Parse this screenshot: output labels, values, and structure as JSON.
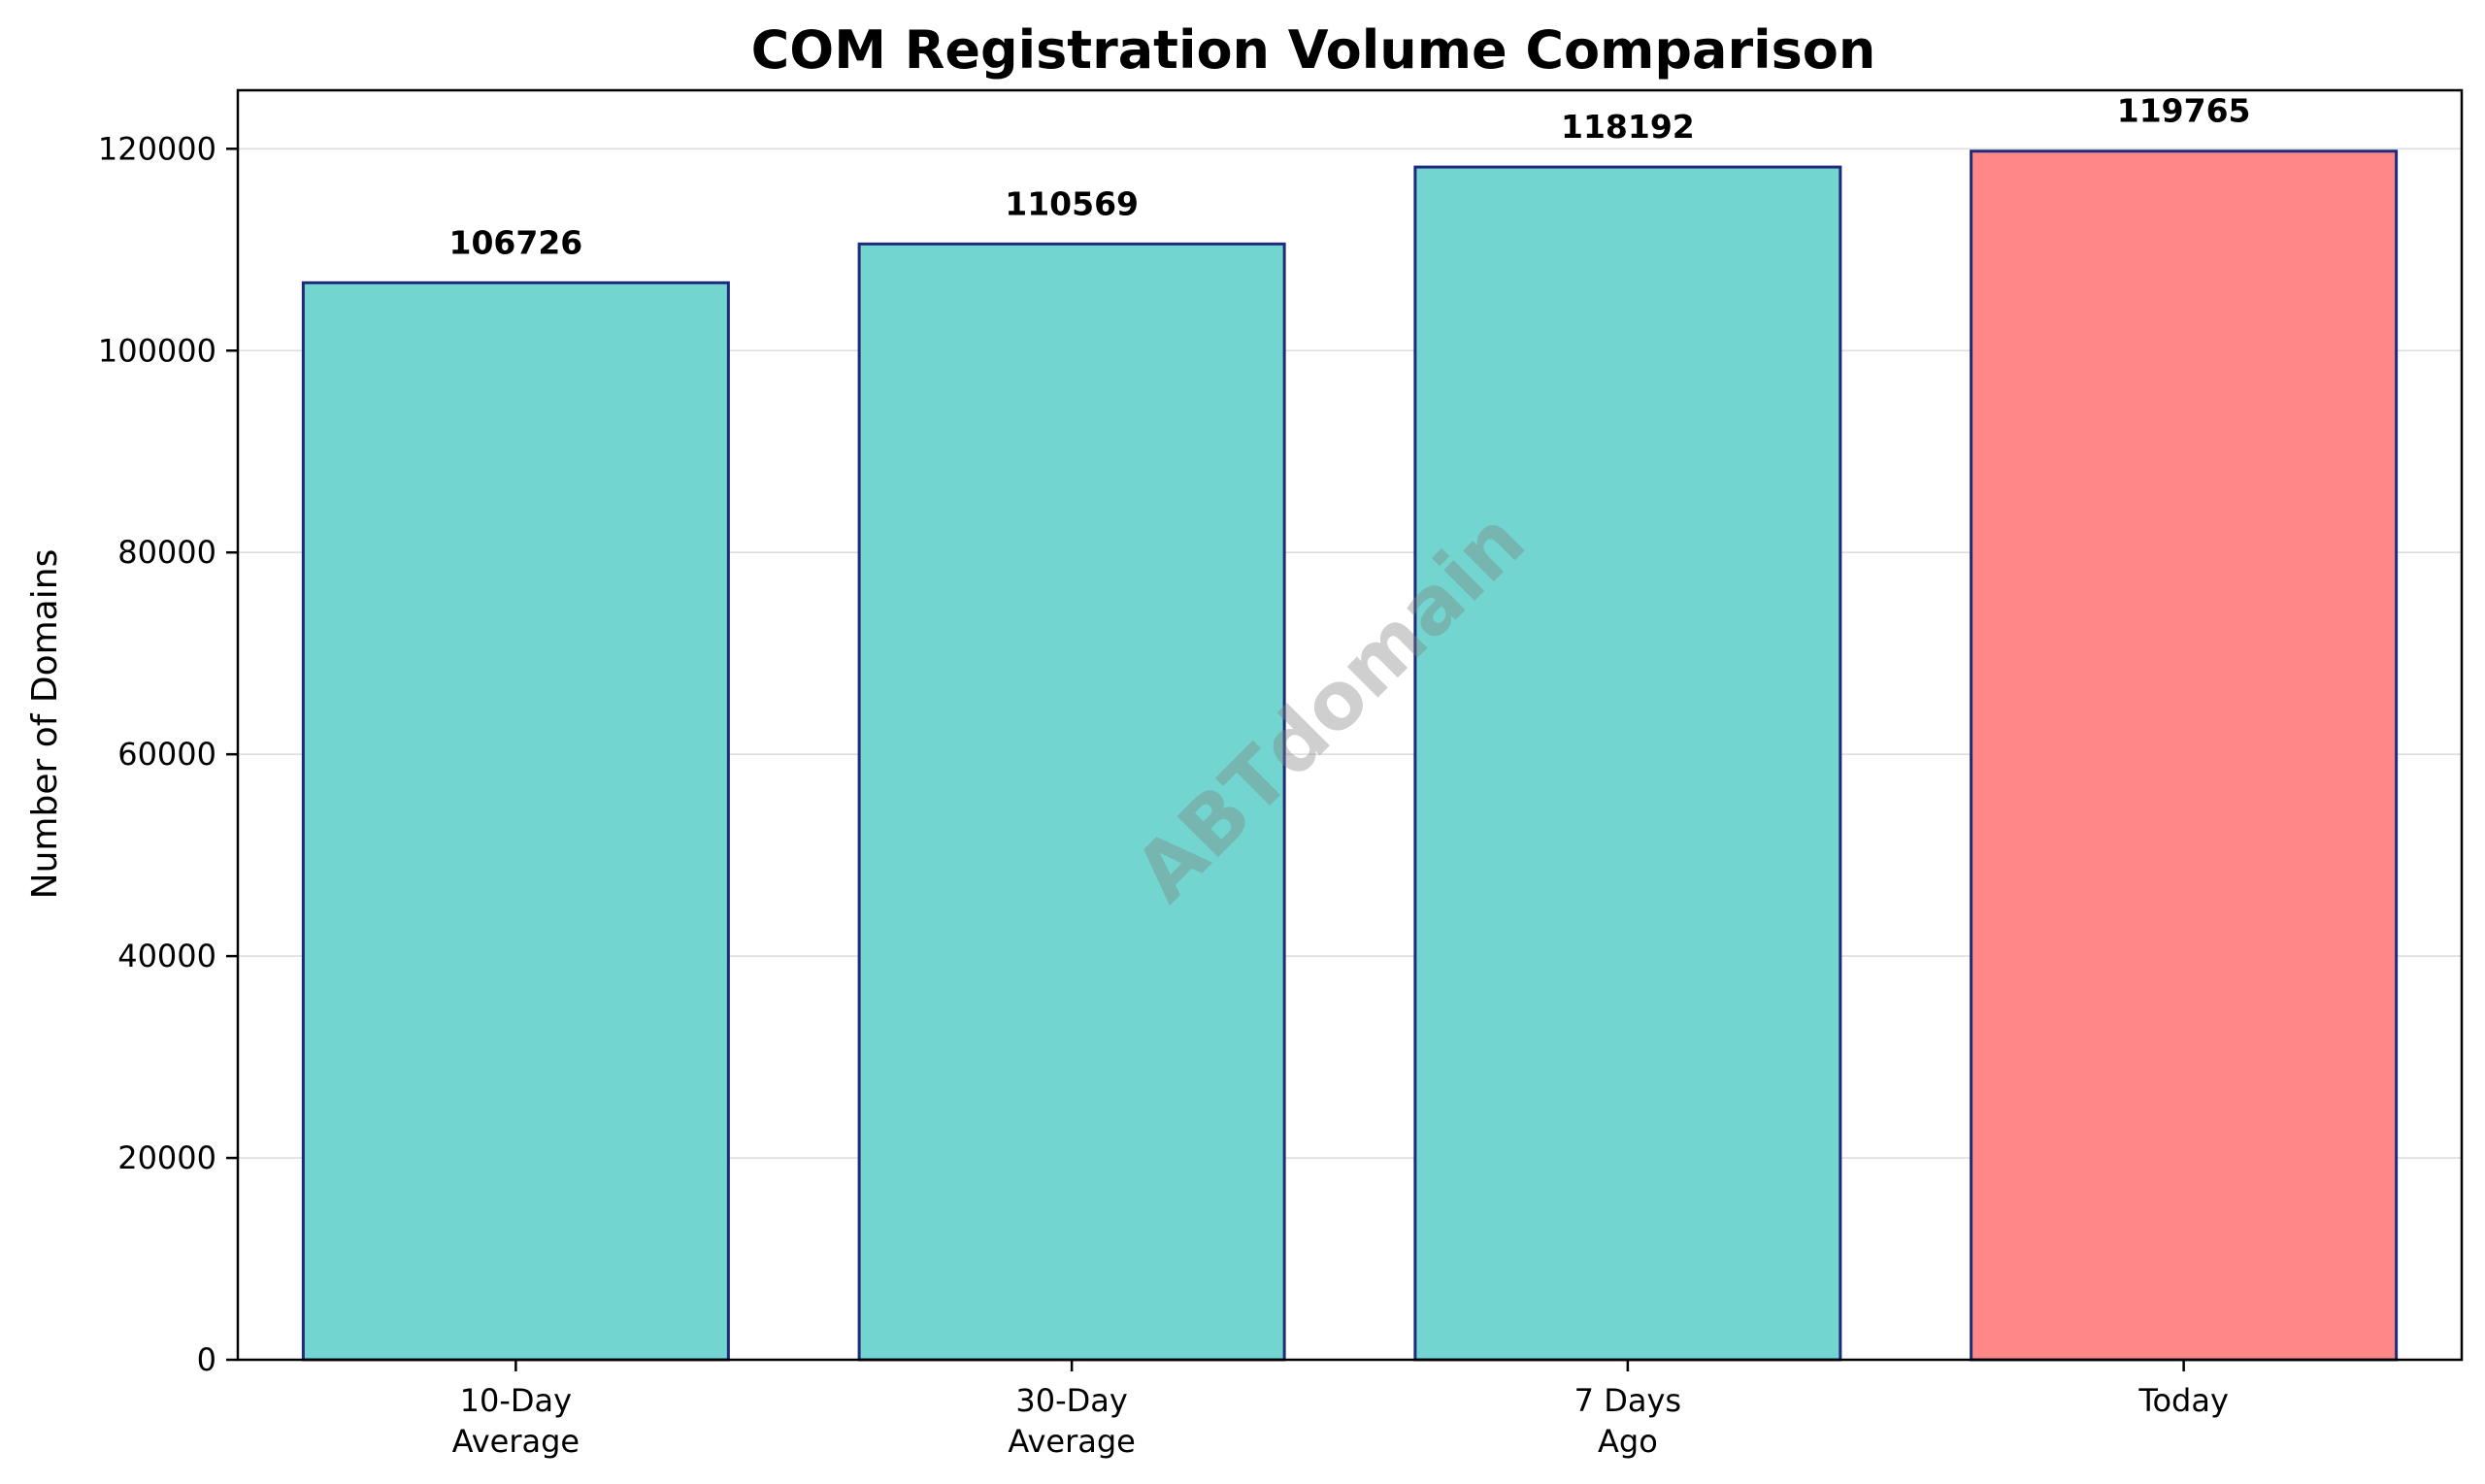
{
  "chart_data": {
    "type": "bar",
    "title": "COM Registration Volume Comparison",
    "xlabel": "",
    "ylabel": "Number of Domains",
    "categories": [
      [
        "10-Day",
        "Average"
      ],
      [
        "30-Day",
        "Average"
      ],
      [
        "7 Days",
        "Ago"
      ],
      [
        "Today"
      ]
    ],
    "values": [
      106726,
      110569,
      118192,
      119765
    ],
    "data_labels": [
      "106726",
      "110569",
      "118192",
      "119765"
    ],
    "bar_colors": [
      "#72d5cf",
      "#72d5cf",
      "#72d5cf",
      "#ff8787"
    ],
    "bar_edge_color": "#1f2a7a",
    "ylim": [
      0,
      125800
    ],
    "yticks": [
      0,
      20000,
      40000,
      60000,
      80000,
      100000,
      120000
    ],
    "ytick_labels": [
      "0",
      "20000",
      "40000",
      "60000",
      "80000",
      "100000",
      "120000"
    ],
    "grid": "horizontal",
    "legend": "none",
    "watermark": "ABTdomain"
  }
}
